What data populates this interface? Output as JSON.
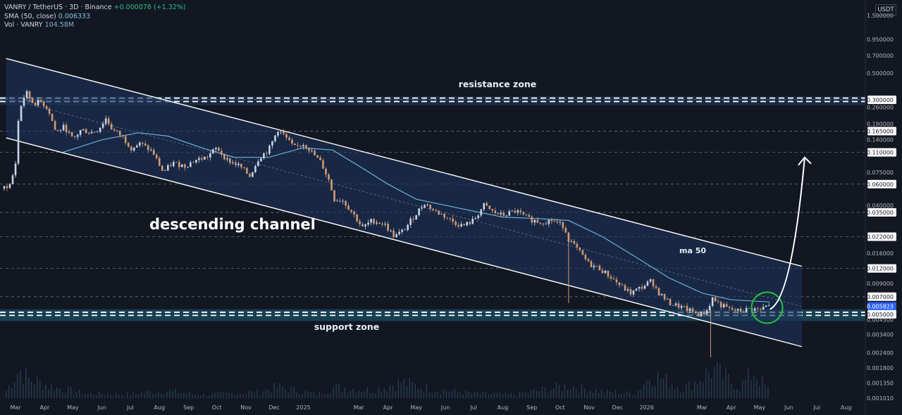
{
  "header": {
    "symbol_line": "VANRY / TetherUS · 3D · Binance",
    "change": "+0.000076 (+1.32%)",
    "sma_label": "SMA (50, close)",
    "sma_value": "0.006333",
    "vol_label": "Vol · VANRY",
    "vol_value": "104.58M",
    "currency": "USDT"
  },
  "colors": {
    "background": "#131722",
    "channel_fill": "#1c3258",
    "channel_line": "#ffffff",
    "support_fill": "#1b4e63",
    "candle_up": "#c8d4e6",
    "candle_down": "#d49a72",
    "ma_line": "#6fb1d4",
    "volume": "#2a4258",
    "price_badge": "#2962ff",
    "highlight_circle": "#25c13c"
  },
  "annotations": {
    "channel_label": "descending channel",
    "resistance_label": "resistance zone",
    "support_label": "support zone",
    "ma_label": "ma 50"
  },
  "chart_data": {
    "type": "candlestick",
    "scale": "log",
    "y_range": [
      0.00101,
      1.5
    ],
    "x_range": [
      "2024-02-15",
      "2026-08-20"
    ],
    "y_axis_ticks": [
      "1.500000",
      "0.950000",
      "0.700000",
      "0.500000",
      "0.300000",
      "0.260000",
      "0.190000",
      "0.165000",
      "0.140000",
      "0.110000",
      "0.075000",
      "0.060000",
      "0.040000",
      "0.035000",
      "0.022000",
      "0.016000",
      "0.012000",
      "0.009000",
      "0.007000",
      "0.005823",
      "0.005000",
      "0.004500",
      "0.003400",
      "0.002400",
      "0.001800",
      "0.001350",
      "0.001010"
    ],
    "y_axis_highlighted": [
      "0.300000",
      "0.165000",
      "0.110000",
      "0.060000",
      "0.035000",
      "0.022000",
      "0.012000",
      "0.007000",
      "0.005000"
    ],
    "current_price": "0.005823",
    "x_axis_labels": [
      {
        "t": "2024-03-01",
        "label": "Mar"
      },
      {
        "t": "2024-04-01",
        "label": "Apr"
      },
      {
        "t": "2024-05-01",
        "label": "May"
      },
      {
        "t": "2024-06-01",
        "label": "Jun"
      },
      {
        "t": "2024-07-01",
        "label": "Jul"
      },
      {
        "t": "2024-08-01",
        "label": "Aug"
      },
      {
        "t": "2024-09-01",
        "label": "Sep"
      },
      {
        "t": "2024-10-01",
        "label": "Oct"
      },
      {
        "t": "2024-11-01",
        "label": "Nov"
      },
      {
        "t": "2024-12-01",
        "label": "Dec"
      },
      {
        "t": "2025-01-01",
        "label": "2025"
      },
      {
        "t": "2025-03-01",
        "label": "Mar"
      },
      {
        "t": "2025-04-01",
        "label": "Apr"
      },
      {
        "t": "2025-05-01",
        "label": "May"
      },
      {
        "t": "2025-06-01",
        "label": "Jun"
      },
      {
        "t": "2025-07-01",
        "label": "Jul"
      },
      {
        "t": "2025-08-01",
        "label": "Aug"
      },
      {
        "t": "2025-09-01",
        "label": "Sep"
      },
      {
        "t": "2025-10-01",
        "label": "Oct"
      },
      {
        "t": "2025-11-01",
        "label": "Nov"
      },
      {
        "t": "2025-12-01",
        "label": "Dec"
      },
      {
        "t": "2026-01-01",
        "label": "2026"
      },
      {
        "t": "2026-03-01",
        "label": "Mar"
      },
      {
        "t": "2026-04-01",
        "label": "Apr"
      },
      {
        "t": "2026-05-01",
        "label": "May"
      },
      {
        "t": "2026-06-01",
        "label": "Jun"
      },
      {
        "t": "2026-07-01",
        "label": "Jul"
      },
      {
        "t": "2026-08-01",
        "label": "Aug"
      }
    ],
    "horizontal_levels": [
      0.3,
      0.165,
      0.11,
      0.06,
      0.035,
      0.022,
      0.012,
      0.007
    ],
    "resistance_zone": {
      "dashed_levels": [
        0.31,
        0.29
      ],
      "range": [
        0.27,
        0.32
      ]
    },
    "support_zone": {
      "dashed_levels": [
        0.0052,
        0.0049
      ],
      "range": [
        0.0044,
        0.0055
      ]
    },
    "channel": {
      "upper": [
        {
          "t": "2024-02-20",
          "p": 0.66
        },
        {
          "t": "2026-06-15",
          "p": 0.0125
        }
      ],
      "lower": [
        {
          "t": "2024-02-20",
          "p": 0.145
        },
        {
          "t": "2026-06-15",
          "p": 0.0027
        }
      ]
    },
    "projection_arrow": [
      {
        "t": "2026-05-12",
        "p": 0.0055
      },
      {
        "t": "2026-05-26",
        "p": 0.0062
      },
      {
        "t": "2026-06-08",
        "p": 0.014
      },
      {
        "t": "2026-06-18",
        "p": 0.1
      }
    ],
    "price_path": [
      {
        "t": "2024-02-15",
        "p": 0.055
      },
      {
        "t": "2024-02-25",
        "p": 0.06
      },
      {
        "t": "2024-03-01",
        "p": 0.09
      },
      {
        "t": "2024-03-04",
        "p": 0.2
      },
      {
        "t": "2024-03-08",
        "p": 0.3
      },
      {
        "t": "2024-03-13",
        "p": 0.34
      },
      {
        "t": "2024-03-20",
        "p": 0.28
      },
      {
        "t": "2024-03-28",
        "p": 0.29
      },
      {
        "t": "2024-04-05",
        "p": 0.25
      },
      {
        "t": "2024-04-13",
        "p": 0.16
      },
      {
        "t": "2024-04-22",
        "p": 0.18
      },
      {
        "t": "2024-05-01",
        "p": 0.14
      },
      {
        "t": "2024-05-10",
        "p": 0.17
      },
      {
        "t": "2024-05-20",
        "p": 0.16
      },
      {
        "t": "2024-05-28",
        "p": 0.17
      },
      {
        "t": "2024-06-05",
        "p": 0.21
      },
      {
        "t": "2024-06-12",
        "p": 0.17
      },
      {
        "t": "2024-06-22",
        "p": 0.15
      },
      {
        "t": "2024-07-02",
        "p": 0.12
      },
      {
        "t": "2024-07-12",
        "p": 0.13
      },
      {
        "t": "2024-07-25",
        "p": 0.11
      },
      {
        "t": "2024-08-05",
        "p": 0.075
      },
      {
        "t": "2024-08-15",
        "p": 0.09
      },
      {
        "t": "2024-08-28",
        "p": 0.085
      },
      {
        "t": "2024-09-08",
        "p": 0.095
      },
      {
        "t": "2024-09-20",
        "p": 0.1
      },
      {
        "t": "2024-10-01",
        "p": 0.12
      },
      {
        "t": "2024-10-12",
        "p": 0.095
      },
      {
        "t": "2024-10-25",
        "p": 0.085
      },
      {
        "t": "2024-11-05",
        "p": 0.07
      },
      {
        "t": "2024-11-15",
        "p": 0.1
      },
      {
        "t": "2024-11-25",
        "p": 0.115
      },
      {
        "t": "2024-12-05",
        "p": 0.17
      },
      {
        "t": "2024-12-12",
        "p": 0.15
      },
      {
        "t": "2024-12-22",
        "p": 0.12
      },
      {
        "t": "2025-01-02",
        "p": 0.13
      },
      {
        "t": "2025-01-10",
        "p": 0.11
      },
      {
        "t": "2025-01-20",
        "p": 0.09
      },
      {
        "t": "2025-01-28",
        "p": 0.065
      },
      {
        "t": "2025-02-03",
        "p": 0.045
      },
      {
        "t": "2025-02-12",
        "p": 0.044
      },
      {
        "t": "2025-02-22",
        "p": 0.035
      },
      {
        "t": "2025-03-05",
        "p": 0.026
      },
      {
        "t": "2025-03-15",
        "p": 0.03
      },
      {
        "t": "2025-03-28",
        "p": 0.028
      },
      {
        "t": "2025-04-08",
        "p": 0.022
      },
      {
        "t": "2025-04-18",
        "p": 0.025
      },
      {
        "t": "2025-04-28",
        "p": 0.032
      },
      {
        "t": "2025-05-10",
        "p": 0.042
      },
      {
        "t": "2025-05-20",
        "p": 0.036
      },
      {
        "t": "2025-05-30",
        "p": 0.033
      },
      {
        "t": "2025-06-10",
        "p": 0.029
      },
      {
        "t": "2025-06-20",
        "p": 0.027
      },
      {
        "t": "2025-07-01",
        "p": 0.03
      },
      {
        "t": "2025-07-12",
        "p": 0.04
      },
      {
        "t": "2025-07-22",
        "p": 0.035
      },
      {
        "t": "2025-08-01",
        "p": 0.033
      },
      {
        "t": "2025-08-15",
        "p": 0.036
      },
      {
        "t": "2025-08-28",
        "p": 0.031
      },
      {
        "t": "2025-09-10",
        "p": 0.029
      },
      {
        "t": "2025-09-22",
        "p": 0.03
      },
      {
        "t": "2025-10-05",
        "p": 0.027
      },
      {
        "t": "2025-10-10",
        "p": 0.021
      },
      {
        "t": "2025-10-20",
        "p": 0.017
      },
      {
        "t": "2025-11-01",
        "p": 0.013
      },
      {
        "t": "2025-11-12",
        "p": 0.012
      },
      {
        "t": "2025-11-25",
        "p": 0.01
      },
      {
        "t": "2025-12-05",
        "p": 0.0085
      },
      {
        "t": "2025-12-15",
        "p": 0.0075
      },
      {
        "t": "2025-12-28",
        "p": 0.0085
      },
      {
        "t": "2026-01-06",
        "p": 0.0095
      },
      {
        "t": "2026-01-14",
        "p": 0.0075
      },
      {
        "t": "2026-01-25",
        "p": 0.0062
      },
      {
        "t": "2026-02-05",
        "p": 0.0058
      },
      {
        "t": "2026-02-15",
        "p": 0.0054
      },
      {
        "t": "2026-02-25",
        "p": 0.005
      },
      {
        "t": "2026-03-05",
        "p": 0.0052
      },
      {
        "t": "2026-03-12",
        "p": 0.0068
      },
      {
        "t": "2026-03-20",
        "p": 0.006
      },
      {
        "t": "2026-03-30",
        "p": 0.0055
      },
      {
        "t": "2026-04-10",
        "p": 0.0053
      },
      {
        "t": "2026-04-22",
        "p": 0.0056
      },
      {
        "t": "2026-05-01",
        "p": 0.0054
      },
      {
        "t": "2026-05-08",
        "p": 0.0058
      },
      {
        "t": "2026-05-12",
        "p": 0.005823
      }
    ],
    "ma50_path": [
      {
        "t": "2024-04-20",
        "p": 0.11
      },
      {
        "t": "2024-06-01",
        "p": 0.14
      },
      {
        "t": "2024-07-10",
        "p": 0.16
      },
      {
        "t": "2024-08-10",
        "p": 0.15
      },
      {
        "t": "2024-09-15",
        "p": 0.12
      },
      {
        "t": "2024-10-20",
        "p": 0.1
      },
      {
        "t": "2024-11-25",
        "p": 0.1
      },
      {
        "t": "2025-01-01",
        "p": 0.12
      },
      {
        "t": "2025-02-01",
        "p": 0.115
      },
      {
        "t": "2025-03-01",
        "p": 0.085
      },
      {
        "t": "2025-04-01",
        "p": 0.06
      },
      {
        "t": "2025-05-01",
        "p": 0.045
      },
      {
        "t": "2025-06-15",
        "p": 0.038
      },
      {
        "t": "2025-08-01",
        "p": 0.032
      },
      {
        "t": "2025-09-10",
        "p": 0.031
      },
      {
        "t": "2025-10-10",
        "p": 0.03
      },
      {
        "t": "2025-11-15",
        "p": 0.022
      },
      {
        "t": "2025-12-20",
        "p": 0.015
      },
      {
        "t": "2026-01-25",
        "p": 0.01
      },
      {
        "t": "2026-03-01",
        "p": 0.0075
      },
      {
        "t": "2026-04-01",
        "p": 0.0066
      },
      {
        "t": "2026-05-12",
        "p": 0.006333
      }
    ],
    "volume_path": [
      {
        "t": "2024-02-20",
        "v": 0.25
      },
      {
        "t": "2024-03-05",
        "v": 0.9
      },
      {
        "t": "2024-03-15",
        "v": 0.6
      },
      {
        "t": "2024-04-15",
        "v": 0.3
      },
      {
        "t": "2024-05-15",
        "v": 0.15
      },
      {
        "t": "2024-07-01",
        "v": 0.12
      },
      {
        "t": "2024-08-05",
        "v": 0.25
      },
      {
        "t": "2024-09-15",
        "v": 0.1
      },
      {
        "t": "2024-11-15",
        "v": 0.2
      },
      {
        "t": "2024-12-05",
        "v": 0.35
      },
      {
        "t": "2025-01-15",
        "v": 0.12
      },
      {
        "t": "2025-02-03",
        "v": 0.35
      },
      {
        "t": "2025-03-15",
        "v": 0.25
      },
      {
        "t": "2025-04-15",
        "v": 0.5
      },
      {
        "t": "2025-05-15",
        "v": 0.3
      },
      {
        "t": "2025-07-01",
        "v": 0.15
      },
      {
        "t": "2025-08-15",
        "v": 0.12
      },
      {
        "t": "2025-10-10",
        "v": 0.4
      },
      {
        "t": "2025-11-15",
        "v": 0.2
      },
      {
        "t": "2025-12-20",
        "v": 0.15
      },
      {
        "t": "2026-01-06",
        "v": 0.75
      },
      {
        "t": "2026-02-10",
        "v": 0.3
      },
      {
        "t": "2026-03-12",
        "v": 0.9
      },
      {
        "t": "2026-04-10",
        "v": 0.35
      },
      {
        "t": "2026-04-25",
        "v": 0.85
      },
      {
        "t": "2026-05-12",
        "v": 0.2
      }
    ]
  }
}
